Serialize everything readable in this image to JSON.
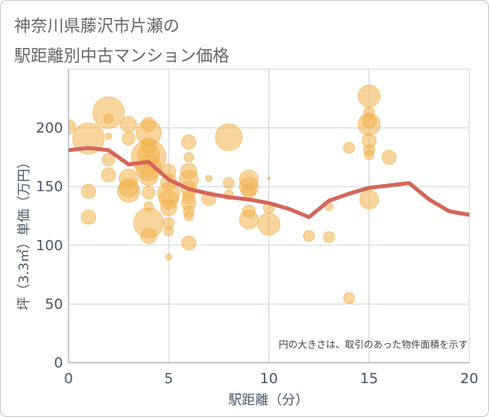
{
  "chart_data": {
    "type": "scatter",
    "title": [
      "神奈川県藤沢市片瀬の",
      "駅距離別中古マンション価格"
    ],
    "xlabel": "駅距離（分）",
    "ylabel": "坪（3.3㎡）単価（万円）",
    "xlim": [
      0,
      20
    ],
    "ylim": [
      0,
      250
    ],
    "xticks": [
      0,
      5,
      10,
      15,
      20
    ],
    "yticks": [
      0,
      50,
      100,
      150,
      200
    ],
    "grid": true,
    "annotation": "円の大きさは、取引のあった物件面積を示す",
    "bubbles": {
      "color": "#f2b24c",
      "fields": [
        "distance_min",
        "price_per_tsubo",
        "relative_area"
      ],
      "points": [
        [
          0,
          201,
          25
        ],
        [
          1,
          191,
          123
        ],
        [
          1,
          146,
          25
        ],
        [
          1,
          124,
          25
        ],
        [
          2,
          213,
          123
        ],
        [
          2,
          208,
          11
        ],
        [
          2,
          193,
          5
        ],
        [
          2,
          173,
          20
        ],
        [
          2,
          160,
          25
        ],
        [
          3,
          203,
          31
        ],
        [
          3,
          191,
          20
        ],
        [
          3,
          157,
          44
        ],
        [
          3,
          149,
          44
        ],
        [
          3,
          146,
          60
        ],
        [
          4,
          203,
          25
        ],
        [
          4,
          196,
          79
        ],
        [
          4,
          185,
          31
        ],
        [
          4,
          177,
          60
        ],
        [
          4,
          175,
          149
        ],
        [
          4,
          166,
          79
        ],
        [
          4,
          159,
          44
        ],
        [
          4,
          145,
          20
        ],
        [
          4,
          133,
          11
        ],
        [
          4,
          119,
          111
        ],
        [
          4,
          108,
          31
        ],
        [
          5,
          163,
          25
        ],
        [
          5,
          154,
          31
        ],
        [
          5,
          144,
          60
        ],
        [
          5,
          139,
          44
        ],
        [
          5,
          132,
          31
        ],
        [
          5,
          119,
          15
        ],
        [
          5,
          112,
          11
        ],
        [
          5,
          90,
          5
        ],
        [
          6,
          188,
          25
        ],
        [
          6,
          175,
          11
        ],
        [
          6,
          163,
          31
        ],
        [
          6,
          156,
          44
        ],
        [
          6,
          148,
          31
        ],
        [
          6,
          141,
          20
        ],
        [
          6,
          136,
          25
        ],
        [
          6,
          129,
          15
        ],
        [
          6,
          125,
          11
        ],
        [
          6,
          102,
          25
        ],
        [
          7,
          157,
          5
        ],
        [
          7,
          140,
          25
        ],
        [
          8,
          192,
          89
        ],
        [
          8,
          153,
          15
        ],
        [
          8,
          143,
          11
        ],
        [
          9,
          156,
          44
        ],
        [
          9,
          150,
          44
        ],
        [
          9,
          146,
          25
        ],
        [
          9,
          129,
          20
        ],
        [
          9,
          122,
          44
        ],
        [
          10,
          157,
          1
        ],
        [
          10,
          132,
          15
        ],
        [
          10,
          118,
          60
        ],
        [
          12,
          108,
          15
        ],
        [
          13,
          133,
          8
        ],
        [
          13,
          107,
          15
        ],
        [
          14,
          183,
          15
        ],
        [
          14,
          55,
          15
        ],
        [
          15,
          227,
          60
        ],
        [
          15,
          213,
          15
        ],
        [
          15,
          206,
          25
        ],
        [
          15,
          203,
          60
        ],
        [
          15,
          189,
          25
        ],
        [
          15,
          181,
          15
        ],
        [
          15,
          177,
          11
        ],
        [
          15,
          139,
          44
        ],
        [
          16,
          175,
          25
        ]
      ]
    },
    "trend_line": {
      "color": "#d4665a",
      "x": [
        0,
        1,
        2,
        3,
        4,
        5,
        6,
        7,
        8,
        9,
        10,
        11,
        12,
        13,
        14,
        15,
        16,
        17,
        18,
        19,
        20
      ],
      "y": [
        181,
        183,
        181,
        169,
        171,
        156,
        148,
        144,
        141,
        139,
        136,
        131,
        124,
        138,
        144,
        149,
        151,
        153,
        139,
        129,
        126
      ]
    }
  }
}
